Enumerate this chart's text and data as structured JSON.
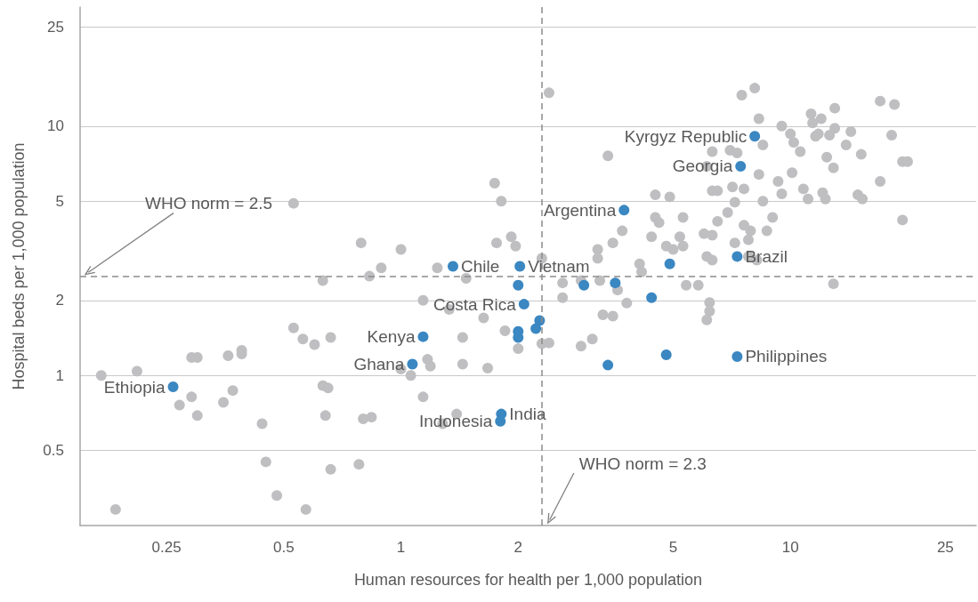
{
  "chart_data": {
    "type": "scatter",
    "xlabel": "Human resources for health per 1,000 population",
    "ylabel": "Hospital beds per 1,000 population",
    "log": "xy",
    "grid": "y",
    "marker": "circle",
    "xlim": [
      0.15,
      30
    ],
    "xticks": [
      0.25,
      0.5,
      1,
      2,
      5,
      10,
      25
    ],
    "ylim": [
      0.25,
      30
    ],
    "yticks": [
      0.5,
      1,
      2,
      5,
      10,
      25
    ],
    "series": [
      {
        "color": "#bfbfc1",
        "x": [
          0.53,
          0.79,
          1.0,
          0.89,
          0.83,
          0.63,
          0.53,
          0.56,
          0.6,
          0.66,
          0.29,
          0.3,
          0.36,
          0.39,
          0.39,
          0.17,
          0.21,
          0.29,
          0.27,
          0.3,
          0.35,
          0.37,
          0.63,
          0.65,
          0.64,
          0.8,
          0.84,
          0.44,
          1.0,
          1.06,
          0.45,
          0.66,
          0.78,
          0.48,
          0.57,
          0.185,
          1.74,
          1.81,
          4.5,
          4.9,
          4.5,
          4.6,
          5.3,
          3.7,
          3.5,
          6.0,
          4.4,
          4.8,
          5.2,
          5.3,
          5.0,
          1.76,
          1.92,
          1.97,
          3.2,
          3.2,
          1.24,
          2.3,
          4.1,
          4.15,
          1.47,
          2.6,
          2.9,
          3.24,
          3.6,
          5.4,
          5.8,
          6.1,
          1.14,
          1.33,
          2.6,
          3.8,
          3.3,
          3.5,
          6.2,
          6.2,
          6.1,
          1.63,
          1.85,
          1.44,
          2.0,
          2.3,
          2.4,
          2.9,
          3.1,
          1.17,
          1.19,
          1.67,
          1.44,
          1.14,
          1.39,
          1.28,
          8.1,
          7.5,
          17.0,
          18.5,
          13.0,
          11.3,
          12.0,
          11.4,
          8.3,
          9.5,
          13.0,
          14.3,
          10.0,
          18.2,
          11.6,
          11.8,
          12.6,
          8.5,
          10.2,
          13.9,
          7.0,
          7.3,
          6.3,
          10.6,
          15.2,
          12.4,
          3.4,
          6.1,
          8.3,
          12.9,
          19.4,
          20.0,
          10.1,
          9.3,
          17.0,
          6.3,
          6.5,
          7.1,
          7.6,
          10.8,
          9.5,
          12.1,
          12.3,
          11.1,
          14.9,
          15.3,
          8.5,
          7.2,
          6.9,
          6.5,
          9.0,
          7.6,
          7.9,
          7.8,
          8.7,
          19.4,
          6.3,
          7.2,
          7.8,
          8.2,
          6.3,
          12.9,
          2.4
        ],
        "values": [
          4.9,
          3.4,
          3.2,
          2.7,
          2.5,
          2.4,
          1.55,
          1.4,
          1.33,
          1.42,
          1.18,
          1.18,
          1.2,
          1.26,
          1.22,
          1.0,
          1.04,
          0.82,
          0.76,
          0.69,
          0.78,
          0.87,
          0.91,
          0.89,
          0.69,
          0.67,
          0.68,
          0.64,
          1.06,
          1.0,
          0.45,
          0.42,
          0.44,
          0.33,
          0.29,
          0.29,
          5.9,
          5.0,
          5.3,
          5.2,
          4.3,
          4.1,
          4.3,
          3.8,
          3.4,
          3.7,
          3.6,
          3.3,
          3.6,
          3.3,
          3.2,
          3.4,
          3.6,
          3.3,
          3.2,
          2.95,
          2.7,
          2.95,
          2.8,
          2.6,
          2.45,
          2.35,
          2.4,
          2.4,
          2.2,
          2.3,
          2.3,
          3.0,
          2.0,
          1.84,
          2.05,
          1.95,
          1.75,
          1.73,
          1.96,
          1.81,
          1.67,
          1.7,
          1.51,
          1.42,
          1.28,
          1.34,
          1.35,
          1.31,
          1.4,
          1.16,
          1.09,
          1.07,
          1.11,
          0.82,
          0.7,
          0.64,
          14.2,
          13.3,
          12.6,
          12.2,
          11.8,
          11.2,
          10.7,
          10.3,
          10.7,
          10.0,
          9.8,
          9.5,
          9.3,
          9.2,
          9.1,
          9.3,
          9.2,
          8.4,
          8.6,
          8.4,
          8.0,
          7.8,
          7.9,
          7.9,
          7.7,
          7.5,
          7.6,
          6.9,
          6.4,
          6.8,
          7.2,
          7.2,
          6.5,
          6.0,
          6.0,
          5.5,
          5.5,
          5.7,
          5.6,
          5.6,
          5.35,
          5.4,
          5.1,
          5.1,
          5.3,
          5.1,
          5.0,
          4.95,
          4.5,
          4.15,
          4.3,
          4.0,
          3.8,
          3.5,
          3.8,
          4.2,
          3.65,
          3.4,
          3.0,
          2.9,
          2.9,
          2.33,
          13.6
        ]
      },
      {
        "color": "#3a87c2",
        "x": [
          0.26,
          1.07,
          1.14,
          1.36,
          2.02,
          2.0,
          2.07,
          2.27,
          2.22,
          2.0,
          2.0,
          1.81,
          1.8,
          3.74,
          2.95,
          3.55,
          3.4,
          4.4,
          4.9,
          4.8,
          8.1,
          7.45,
          7.3,
          7.3
        ],
        "values": [
          0.9,
          1.11,
          1.43,
          2.74,
          2.74,
          2.3,
          1.93,
          1.66,
          1.54,
          1.5,
          1.42,
          0.7,
          0.655,
          4.6,
          2.3,
          2.35,
          1.1,
          2.05,
          2.8,
          1.21,
          9.1,
          6.9,
          3.0,
          1.19
        ]
      }
    ],
    "ref_lines": [
      {
        "axis": "y",
        "value": 2.5,
        "label": "WHO norm = 2.5",
        "color": "#8c8c8c",
        "line_style": "dashed"
      },
      {
        "axis": "x",
        "value": 2.3,
        "label": "WHO norm = 2.3",
        "color": "#8c8c8c",
        "line_style": "dashed"
      }
    ],
    "annotations": [
      {
        "text": "Kyrgyz Republic",
        "x": 8.1,
        "y": 9.1
      },
      {
        "text": "Georgia",
        "x": 7.45,
        "y": 6.9
      },
      {
        "text": "Argentina",
        "x": 3.74,
        "y": 4.6
      },
      {
        "text": "Brazil",
        "x": 7.3,
        "y": 3.0
      },
      {
        "text": "Chile",
        "x": 1.36,
        "y": 2.74
      },
      {
        "text": "Vietnam",
        "x": 2.02,
        "y": 2.74
      },
      {
        "text": "Costa Rica",
        "x": 2.07,
        "y": 1.93
      },
      {
        "text": "Kenya",
        "x": 1.14,
        "y": 1.43
      },
      {
        "text": "Philippines",
        "x": 7.3,
        "y": 1.19
      },
      {
        "text": "Ghana",
        "x": 1.07,
        "y": 1.11
      },
      {
        "text": "Ethiopia",
        "x": 0.26,
        "y": 0.9
      },
      {
        "text": "India",
        "x": 1.81,
        "y": 0.7
      },
      {
        "text": "Indonesia",
        "x": 1.8,
        "y": 0.655
      }
    ]
  }
}
